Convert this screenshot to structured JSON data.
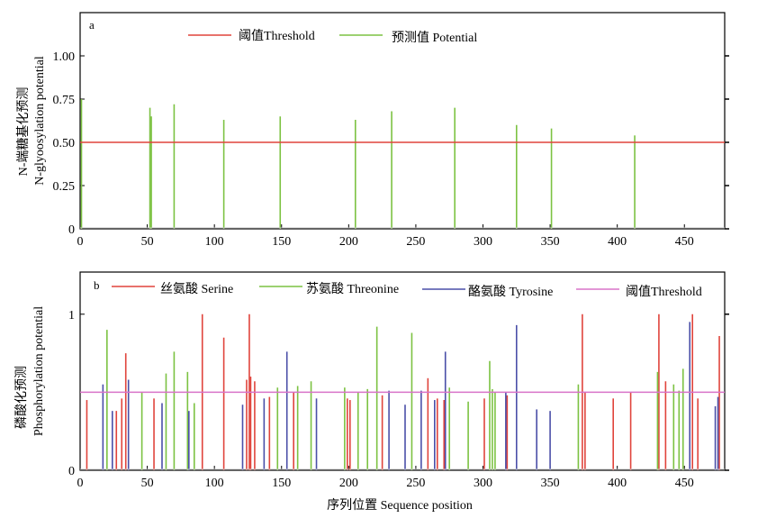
{
  "chart_data": [
    {
      "type": "line",
      "panel_label": "a",
      "ylabel_cn": "N-端糖基化预测",
      "ylabel_en": "N-glyoosylation potential",
      "xlim": [
        0,
        480
      ],
      "ylim": [
        0,
        1.25
      ],
      "xticks": [
        0,
        50,
        100,
        150,
        200,
        250,
        300,
        350,
        400,
        450
      ],
      "yticks": [
        0,
        0.25,
        0.5,
        0.75,
        1.0
      ],
      "ytick_labels": [
        "0",
        "0.25",
        "0.50",
        "0.75",
        "1.00"
      ],
      "legend": [
        {
          "label": "阈值Threshold",
          "color": "#e0443c"
        },
        {
          "label": "预测值 Potential",
          "color": "#7cc242"
        }
      ],
      "threshold": 0.5,
      "series": [
        {
          "name": "预测值 Potential",
          "color": "#7cc242",
          "x": [
            1,
            52,
            53,
            70,
            107,
            149,
            205,
            232,
            279,
            325,
            351,
            413
          ],
          "y": [
            0.75,
            0.7,
            0.65,
            0.72,
            0.63,
            0.65,
            0.63,
            0.68,
            0.7,
            0.6,
            0.58,
            0.54
          ]
        }
      ]
    },
    {
      "type": "line",
      "panel_label": "b",
      "ylabel_cn": "磷酸化预测",
      "ylabel_en": "Phosphorylation potential",
      "xlabel": "序列位置 Sequence position",
      "xlim": [
        0,
        480
      ],
      "ylim": [
        0,
        1.27
      ],
      "xticks": [
        0,
        50,
        100,
        150,
        200,
        250,
        300,
        350,
        400,
        450
      ],
      "yticks": [
        0,
        1
      ],
      "ytick_labels": [
        "0",
        "1"
      ],
      "legend": [
        {
          "label": "丝氨酸 Serine",
          "color": "#e0443c"
        },
        {
          "label": "苏氨酸 Threonine",
          "color": "#7cc242"
        },
        {
          "label": "酪氨酸 Tyrosine",
          "color": "#4a4fa8"
        },
        {
          "label": "阈值Threshold",
          "color": "#d873c8"
        }
      ],
      "threshold": 0.5,
      "series": [
        {
          "name": "丝氨酸 Serine",
          "color": "#e0443c",
          "x": [
            5,
            27,
            31,
            34,
            55,
            91,
            107,
            124,
            126,
            127,
            130,
            141,
            159,
            199,
            201,
            225,
            259,
            266,
            271,
            301,
            318,
            374,
            376,
            397,
            410,
            431,
            436,
            456,
            460,
            476
          ],
          "y": [
            0.45,
            0.38,
            0.46,
            0.75,
            0.46,
            1.0,
            0.85,
            0.58,
            1.0,
            0.6,
            0.57,
            0.47,
            0.5,
            0.46,
            0.45,
            0.48,
            0.59,
            0.46,
            0.45,
            0.46,
            0.48,
            1.0,
            0.5,
            0.46,
            0.5,
            1.0,
            0.57,
            1.0,
            0.46,
            0.86
          ]
        },
        {
          "name": "苏氨酸 Threonine",
          "color": "#7cc242",
          "x": [
            20,
            46,
            64,
            70,
            80,
            85,
            147,
            162,
            172,
            197,
            207,
            214,
            221,
            247,
            275,
            289,
            305,
            307,
            309,
            371,
            430,
            442,
            446,
            449
          ],
          "y": [
            0.9,
            0.5,
            0.62,
            0.76,
            0.63,
            0.43,
            0.53,
            0.54,
            0.57,
            0.53,
            0.5,
            0.52,
            0.92,
            0.88,
            0.53,
            0.44,
            0.7,
            0.52,
            0.5,
            0.55,
            0.63,
            0.55,
            0.51,
            0.65
          ]
        },
        {
          "name": "酪氨酸 Tyrosine",
          "color": "#4a4fa8",
          "x": [
            17,
            24,
            36,
            61,
            81,
            121,
            137,
            154,
            176,
            230,
            242,
            254,
            264,
            272,
            317,
            325,
            340,
            350,
            454,
            473,
            475
          ],
          "y": [
            0.55,
            0.38,
            0.58,
            0.43,
            0.38,
            0.42,
            0.46,
            0.76,
            0.46,
            0.51,
            0.42,
            0.51,
            0.45,
            0.76,
            0.5,
            0.93,
            0.39,
            0.38,
            0.95,
            0.41,
            0.47
          ]
        }
      ]
    }
  ]
}
